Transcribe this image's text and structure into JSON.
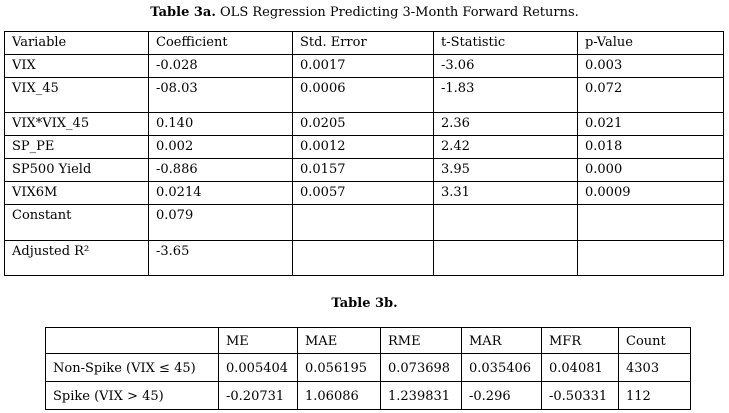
{
  "page": {
    "background_color": "#ffffff",
    "text_color": "#000000"
  },
  "table3a": {
    "title_bold": "Table 3a.",
    "title_rest": " OLS Regression Predicting 3-Month Forward Returns.",
    "headers": [
      "Variable",
      "Coefficient",
      "Std. Error",
      "t-Statistic",
      "p-Value"
    ],
    "rows": [
      [
        "VIX",
        "-0.028",
        "0.0017",
        "-3.06",
        "0.003"
      ],
      [
        "VIX_45",
        "-08.03",
        "0.0006",
        "-1.83",
        "0.072"
      ],
      [
        "VIX*VIX_45",
        "0.140",
        "0.0205",
        "2.36",
        "0.021"
      ],
      [
        "SP_PE",
        "0.002",
        "0.0012",
        "2.42",
        "0.018"
      ],
      [
        "SP500 Yield",
        "-0.886",
        "0.0157",
        "3.95",
        "0.000"
      ],
      [
        "VIX6M",
        "0.0214",
        "0.0057",
        "3.31",
        "0.0009"
      ],
      [
        "Constant",
        "0.079",
        "",
        "",
        ""
      ],
      [
        "Adjusted R²",
        "-3.65",
        "",
        "",
        ""
      ]
    ]
  },
  "table3b": {
    "title_bold": "Table 3b.",
    "title_rest": "",
    "headers": [
      "",
      "ME",
      "MAE",
      "RME",
      "MAR",
      "MFR",
      "Count"
    ],
    "rows": [
      [
        "Non-Spike (VIX ≤ 45)",
        "0.005404",
        "0.056195",
        "0.073698",
        "0.035406",
        "0.04081",
        "4303"
      ],
      [
        "Spike (VIX > 45)",
        "-0.20731",
        "1.06086",
        "1.239831",
        "-0.296",
        "-0.50331",
        "112"
      ]
    ]
  }
}
